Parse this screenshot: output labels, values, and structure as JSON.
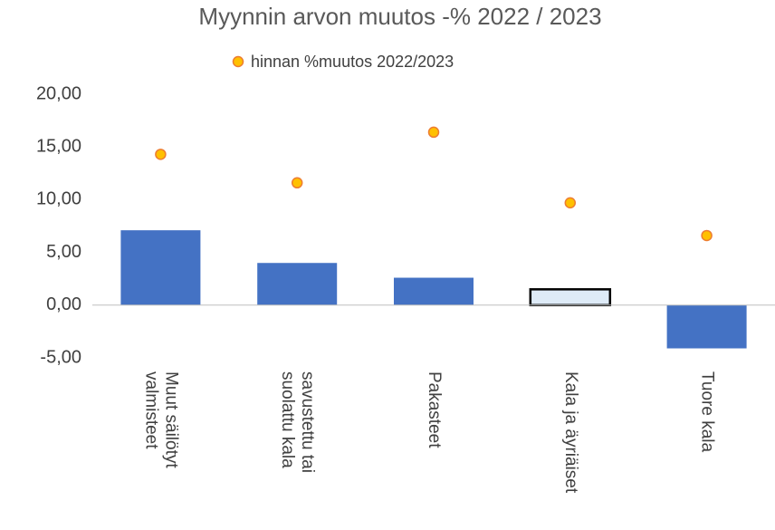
{
  "chart_data": {
    "type": "bar",
    "title": "Myynnin arvon muutos -%  2022 / 2023",
    "categories": [
      "Muut säilötyt valmisteet",
      "savustettu tai suolattu kala",
      "Pakasteet",
      "Kala ja äyriäiset",
      "Tuore kala"
    ],
    "series": [
      {
        "type": "bar",
        "color": "#4472c4",
        "values": [
          7.1,
          4.0,
          2.6,
          1.5,
          -4.1
        ],
        "highlight": {
          "index": 3,
          "fill": "#deebf7",
          "stroke": "#000000"
        }
      },
      {
        "type": "scatter",
        "name": "hinnan %muutos 2022/2023",
        "color": "#ffc000",
        "edge": "#ed7d31",
        "values": [
          14.3,
          11.6,
          16.4,
          9.7,
          6.6
        ]
      }
    ],
    "ylim": [
      -5,
      20
    ],
    "yticks": [
      {
        "value": -5,
        "label": "-5,00"
      },
      {
        "value": 0,
        "label": "0,00"
      },
      {
        "value": 5,
        "label": "5,00"
      },
      {
        "value": 10,
        "label": "10,00"
      },
      {
        "value": 15,
        "label": "15,00"
      },
      {
        "value": 20,
        "label": "20,00"
      }
    ],
    "grid": false,
    "legend": "top"
  }
}
